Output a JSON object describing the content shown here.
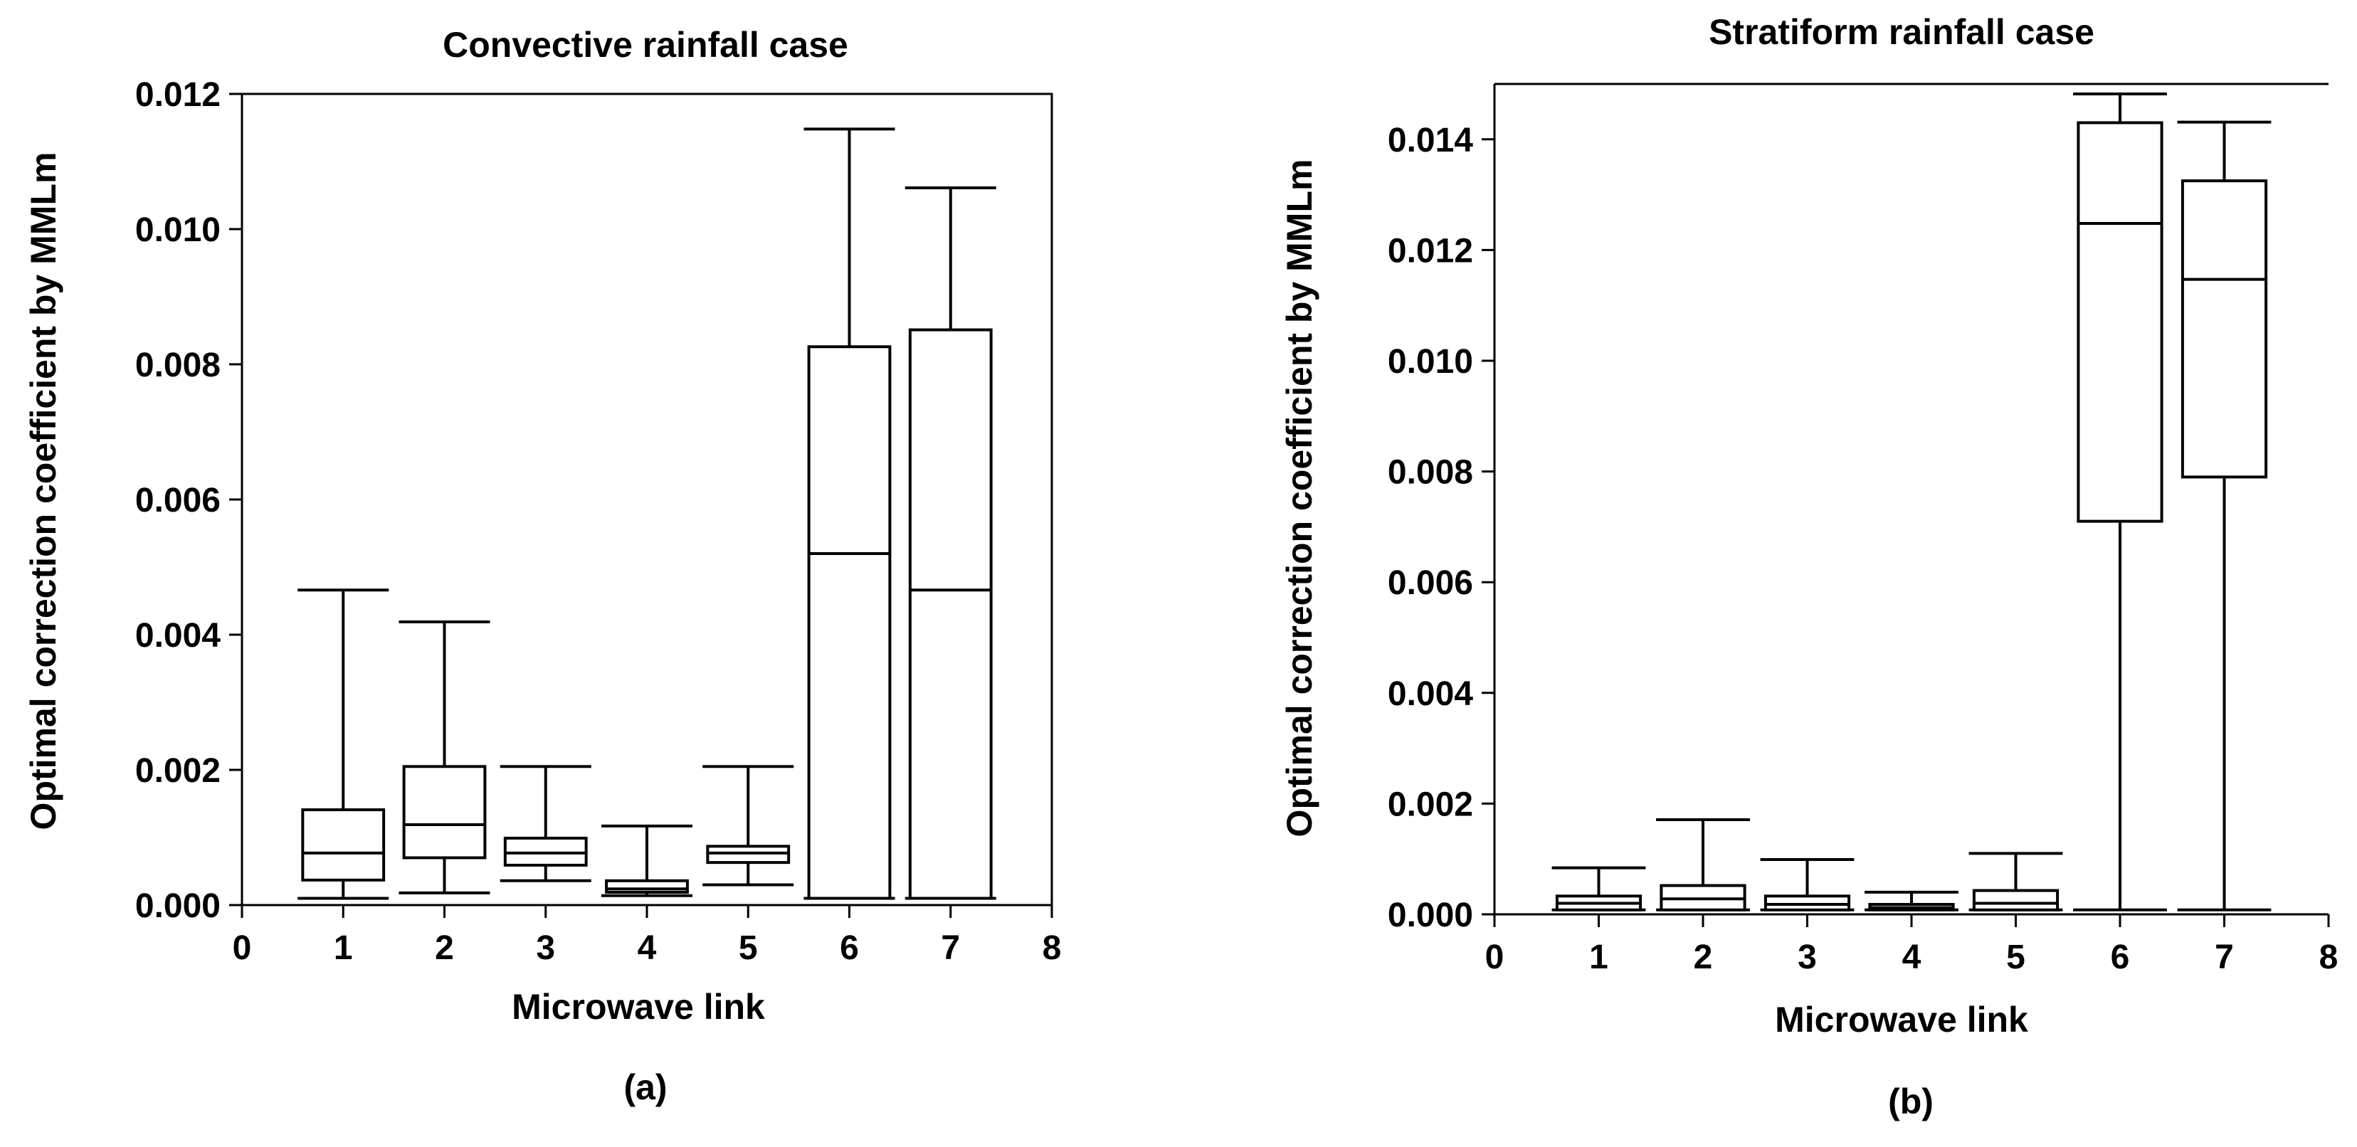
{
  "chart_data": [
    {
      "type": "box",
      "panel_label": "(a)",
      "title": "Convective rainfall case",
      "xlabel": "Microwave link",
      "ylabel": "Optimal correction coefficient by MMLm",
      "xlim": [
        0,
        8
      ],
      "ylim": [
        0,
        0.012
      ],
      "x_ticks": [
        0,
        1,
        2,
        3,
        4,
        5,
        6,
        7,
        8
      ],
      "y_ticks": [
        0.0,
        0.002,
        0.004,
        0.006,
        0.008,
        0.01,
        0.012
      ],
      "y_tick_labels": [
        "0.000",
        "0.002",
        "0.004",
        "0.006",
        "0.008",
        "0.010",
        "0.012"
      ],
      "boxes": [
        {
          "link": 1,
          "whisker_low": 0.0001,
          "q1": 0.00037,
          "median": 0.00077,
          "q3": 0.00141,
          "whisker_high": 0.00466
        },
        {
          "link": 2,
          "whisker_low": 0.00018,
          "q1": 0.0007,
          "median": 0.00119,
          "q3": 0.00205,
          "whisker_high": 0.00419
        },
        {
          "link": 3,
          "whisker_low": 0.00036,
          "q1": 0.00059,
          "median": 0.00077,
          "q3": 0.00099,
          "whisker_high": 0.00205
        },
        {
          "link": 4,
          "whisker_low": 0.00014,
          "q1": 0.00019,
          "median": 0.00024,
          "q3": 0.00036,
          "whisker_high": 0.00117
        },
        {
          "link": 5,
          "whisker_low": 0.0003,
          "q1": 0.00063,
          "median": 0.00077,
          "q3": 0.00087,
          "whisker_high": 0.00205
        },
        {
          "link": 6,
          "whisker_low": 0.0001,
          "q1": 0.0001,
          "median": 0.0052,
          "q3": 0.00826,
          "whisker_high": 0.01148
        },
        {
          "link": 7,
          "whisker_low": 0.0001,
          "q1": 0.0001,
          "median": 0.00466,
          "q3": 0.00851,
          "whisker_high": 0.01061
        }
      ]
    },
    {
      "type": "box",
      "panel_label": "(b)",
      "title": "Stratiform rainfall case",
      "xlabel": "Microwave link",
      "ylabel": "Optimal correction coefficient by MMLm",
      "xlim": [
        0,
        8
      ],
      "ylim": [
        0,
        0.015
      ],
      "x_ticks": [
        0,
        1,
        2,
        3,
        4,
        5,
        6,
        7,
        8
      ],
      "y_ticks": [
        0.0,
        0.002,
        0.004,
        0.006,
        0.008,
        0.01,
        0.012,
        0.014
      ],
      "y_tick_labels": [
        "0.000",
        "0.002",
        "0.004",
        "0.006",
        "0.008",
        "0.010",
        "0.012",
        "0.014"
      ],
      "boxes": [
        {
          "link": 1,
          "whisker_low": 8e-05,
          "q1": 8e-05,
          "median": 0.0002,
          "q3": 0.00033,
          "whisker_high": 0.00084
        },
        {
          "link": 2,
          "whisker_low": 8e-05,
          "q1": 8e-05,
          "median": 0.00028,
          "q3": 0.00052,
          "whisker_high": 0.00171
        },
        {
          "link": 3,
          "whisker_low": 8e-05,
          "q1": 8e-05,
          "median": 0.00018,
          "q3": 0.00033,
          "whisker_high": 0.00099
        },
        {
          "link": 4,
          "whisker_low": 8e-05,
          "q1": 8e-05,
          "median": 0.00012,
          "q3": 0.00018,
          "whisker_high": 0.0004
        },
        {
          "link": 5,
          "whisker_low": 8e-05,
          "q1": 8e-05,
          "median": 0.0002,
          "q3": 0.00043,
          "whisker_high": 0.0011
        },
        {
          "link": 6,
          "whisker_low": 8e-05,
          "q1": 0.0071,
          "median": 0.01248,
          "q3": 0.0143,
          "whisker_high": 0.01482
        },
        {
          "link": 7,
          "whisker_low": 8e-05,
          "q1": 0.0079,
          "median": 0.01147,
          "q3": 0.01325,
          "whisker_high": 0.01431
        }
      ]
    }
  ]
}
